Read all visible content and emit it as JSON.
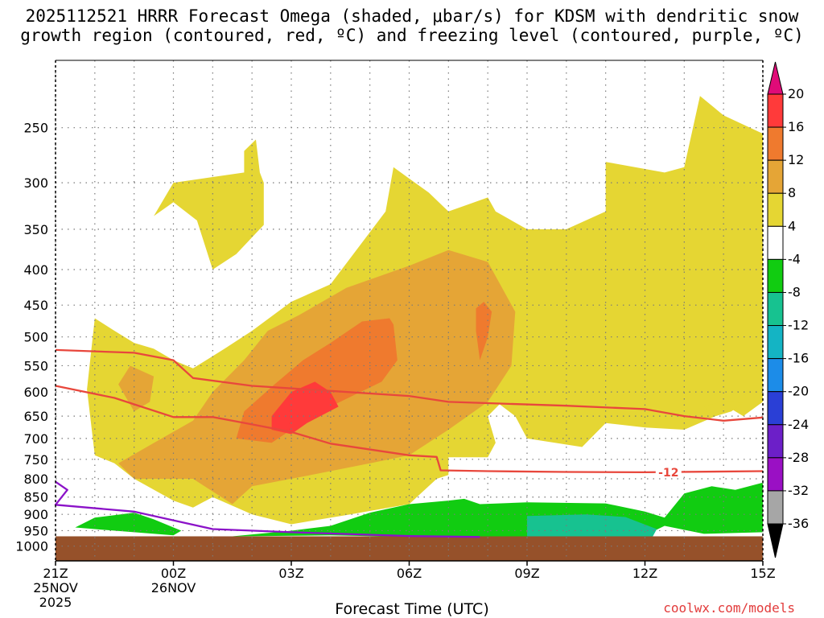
{
  "title_line1": "2025112521 HRRR Forecast Omega (shaded, μbar/s) for KDSM with dendritic snow",
  "title_line2": "growth region (contoured, red, ºC) and freezing level (contoured, purple, ºC)",
  "credit": "coolwx.com/models",
  "chart_data": {
    "type": "heatmap",
    "title": "2025112521 HRRR Forecast Omega (shaded, μbar/s) for KDSM with dendritic snow growth region (contoured, red, ºC) and freezing level (contoured, purple, ºC)",
    "xlabel": "Forecast Time (UTC)",
    "ylabel": "",
    "x_range_hours": [
      0,
      18
    ],
    "y_range_mb": [
      1050,
      200
    ],
    "y_scale": "log-pressure",
    "grid": true,
    "y_ticks": [
      250,
      300,
      350,
      400,
      450,
      500,
      550,
      600,
      650,
      700,
      750,
      800,
      850,
      900,
      950,
      1000
    ],
    "x_ticks": [
      {
        "hour": 0,
        "label": "21Z",
        "label2": "25NOV",
        "label3": "2025"
      },
      {
        "hour": 3,
        "label": "00Z",
        "label2": "26NOV",
        "label3": ""
      },
      {
        "hour": 6,
        "label": "03Z",
        "label2": "",
        "label3": ""
      },
      {
        "hour": 9,
        "label": "06Z",
        "label2": "",
        "label3": ""
      },
      {
        "hour": 12,
        "label": "09Z",
        "label2": "",
        "label3": ""
      },
      {
        "hour": 15,
        "label": "12Z",
        "label2": "",
        "label3": ""
      },
      {
        "hour": 18,
        "label": "15Z",
        "label2": "",
        "label3": ""
      }
    ],
    "colorbar": {
      "labels": [
        "20",
        "16",
        "12",
        "8",
        "4",
        "-4",
        "-8",
        "-12",
        "-16",
        "-20",
        "-24",
        "-28",
        "-32",
        "-36"
      ],
      "colors": [
        "#ff3a3a",
        "#ef7a2e",
        "#e5a536",
        "#e5d633",
        "#ffffff",
        "#11cc11",
        "#17c290",
        "#14b4c4",
        "#1c8ce8",
        "#2a3fd6",
        "#6c1fc8",
        "#9a10c4",
        "#a6a6a6"
      ],
      "top_color": "#e00b78",
      "bottom_color": "#000000"
    },
    "contour_labels": [
      {
        "text": "-12",
        "hour": 15.6,
        "p": 783
      }
    ],
    "lines": [
      {
        "name": "dgz_-12_upper",
        "color": "#e8473c",
        "points": [
          [
            0,
            522
          ],
          [
            2,
            527
          ],
          [
            3,
            540
          ],
          [
            3.5,
            573
          ],
          [
            5,
            588
          ],
          [
            7,
            598
          ],
          [
            9,
            608
          ],
          [
            10,
            620
          ],
          [
            13,
            628
          ],
          [
            15,
            635
          ],
          [
            16,
            650
          ],
          [
            17,
            660
          ],
          [
            18,
            653
          ]
        ]
      },
      {
        "name": "dgz_-12_lower",
        "color": "#e8473c",
        "points": [
          [
            0,
            588
          ],
          [
            1.5,
            612
          ],
          [
            3,
            652
          ],
          [
            4,
            652
          ],
          [
            5,
            668
          ],
          [
            6,
            685
          ],
          [
            7,
            712
          ],
          [
            9,
            740
          ],
          [
            9.7,
            744
          ],
          [
            9.8,
            778
          ],
          [
            11,
            780
          ],
          [
            13,
            782
          ],
          [
            15,
            783
          ],
          [
            18,
            780
          ]
        ]
      },
      {
        "name": "freezing_level",
        "color": "#8b12c8",
        "points": [
          [
            0,
            808
          ],
          [
            0.3,
            830
          ],
          [
            0,
            872
          ],
          [
            2,
            892
          ],
          [
            4,
            945
          ],
          [
            6,
            955
          ],
          [
            9,
            967
          ],
          [
            10.8,
            970
          ]
        ]
      }
    ],
    "regions": [
      {
        "value": "4",
        "color": "#e5d633",
        "points": [
          [
            0.8,
            595
          ],
          [
            1,
            470
          ],
          [
            1.5,
            490
          ],
          [
            2,
            510
          ],
          [
            2.5,
            520
          ],
          [
            3,
            540
          ],
          [
            3.5,
            555
          ],
          [
            4.3,
            520
          ],
          [
            5,
            490
          ],
          [
            6,
            445
          ],
          [
            7,
            420
          ],
          [
            8.4,
            330
          ],
          [
            8.6,
            285
          ],
          [
            9.5,
            310
          ],
          [
            10,
            330
          ],
          [
            11,
            315
          ],
          [
            11.2,
            330
          ],
          [
            12,
            350
          ],
          [
            13,
            350
          ],
          [
            14,
            330
          ],
          [
            14,
            280
          ],
          [
            15.5,
            290
          ],
          [
            16,
            285
          ],
          [
            16.4,
            225
          ],
          [
            17,
            240
          ],
          [
            18,
            255
          ],
          [
            18,
            620
          ],
          [
            17.5,
            650
          ],
          [
            17,
            625
          ],
          [
            16.8,
            650
          ],
          [
            16,
            680
          ],
          [
            15,
            675
          ],
          [
            14,
            665
          ],
          [
            13.4,
            720
          ],
          [
            12,
            700
          ],
          [
            11.7,
            650
          ],
          [
            11.3,
            625
          ],
          [
            11,
            650
          ],
          [
            11.2,
            710
          ],
          [
            11,
            745
          ],
          [
            10,
            745
          ],
          [
            10,
            790
          ],
          [
            9.7,
            800
          ],
          [
            9,
            870
          ],
          [
            7.5,
            900
          ],
          [
            6,
            930
          ],
          [
            5,
            900
          ],
          [
            4,
            850
          ],
          [
            3.5,
            880
          ],
          [
            3,
            860
          ],
          [
            2,
            800
          ],
          [
            1.5,
            760
          ],
          [
            1,
            740
          ]
        ]
      },
      {
        "value": "4",
        "color": "#e5d633",
        "points": [
          [
            2.5,
            335
          ],
          [
            3,
            300
          ],
          [
            4.8,
            290
          ],
          [
            4.8,
            270
          ],
          [
            5.1,
            260
          ],
          [
            5.2,
            290
          ],
          [
            5.3,
            300
          ],
          [
            5.3,
            345
          ],
          [
            4.6,
            380
          ],
          [
            4,
            400
          ],
          [
            3.6,
            340
          ],
          [
            3,
            320
          ]
        ]
      },
      {
        "value": "4",
        "color": "#e5d633",
        "points": [
          [
            16.5,
            630
          ],
          [
            17,
            618
          ],
          [
            17.5,
            622
          ],
          [
            17.2,
            640
          ],
          [
            16.8,
            650
          ]
        ]
      },
      {
        "value": "8",
        "color": "#e5a536",
        "points": [
          [
            1.6,
            760
          ],
          [
            2.7,
            700
          ],
          [
            3.5,
            660
          ],
          [
            4,
            600
          ],
          [
            4.8,
            540
          ],
          [
            5.4,
            490
          ],
          [
            6.2,
            465
          ],
          [
            7.4,
            425
          ],
          [
            9,
            395
          ],
          [
            10,
            375
          ],
          [
            11,
            390
          ],
          [
            11.7,
            460
          ],
          [
            11.6,
            550
          ],
          [
            11,
            620
          ],
          [
            10,
            680
          ],
          [
            9,
            740
          ],
          [
            8,
            760
          ],
          [
            6.5,
            790
          ],
          [
            5,
            820
          ],
          [
            4.5,
            870
          ],
          [
            3.5,
            800
          ],
          [
            2,
            800
          ]
        ]
      },
      {
        "value": "8",
        "color": "#e5a536",
        "points": [
          [
            1.6,
            585
          ],
          [
            1.9,
            550
          ],
          [
            2.5,
            570
          ],
          [
            2.4,
            620
          ],
          [
            2,
            640
          ]
        ]
      },
      {
        "value": "12",
        "color": "#ef7a2e",
        "points": [
          [
            4.6,
            700
          ],
          [
            4.8,
            640
          ],
          [
            5.5,
            590
          ],
          [
            6.3,
            540
          ],
          [
            7,
            510
          ],
          [
            7.8,
            475
          ],
          [
            8.5,
            470
          ],
          [
            8.6,
            480
          ],
          [
            8.7,
            540
          ],
          [
            8.3,
            580
          ],
          [
            7.5,
            610
          ],
          [
            6.5,
            650
          ],
          [
            6,
            680
          ],
          [
            5.5,
            710
          ]
        ]
      },
      {
        "value": "12",
        "color": "#ef7a2e",
        "points": [
          [
            10.7,
            455
          ],
          [
            10.9,
            445
          ],
          [
            11.1,
            460
          ],
          [
            11,
            500
          ],
          [
            10.8,
            540
          ],
          [
            10.7,
            490
          ]
        ]
      },
      {
        "value": "16",
        "color": "#ff3a3a",
        "points": [
          [
            5.5,
            650
          ],
          [
            6,
            600
          ],
          [
            6.6,
            580
          ],
          [
            7,
            600
          ],
          [
            7.2,
            630
          ],
          [
            6.4,
            665
          ],
          [
            6,
            690
          ],
          [
            5.5,
            680
          ]
        ]
      },
      {
        "value": "-4",
        "color": "#11cc11",
        "points": [
          [
            0.5,
            940
          ],
          [
            1,
            910
          ],
          [
            2,
            895
          ],
          [
            2.5,
            915
          ],
          [
            3.2,
            950
          ],
          [
            3,
            965
          ],
          [
            2,
            955
          ],
          [
            1,
            945
          ]
        ]
      },
      {
        "value": "-4",
        "color": "#11cc11",
        "points": [
          [
            4.5,
            968
          ],
          [
            6,
            950
          ],
          [
            7,
            935
          ],
          [
            8,
            895
          ],
          [
            9,
            870
          ],
          [
            10,
            860
          ],
          [
            10.4,
            855
          ],
          [
            10.8,
            870
          ],
          [
            12,
            865
          ],
          [
            14,
            868
          ],
          [
            15,
            892
          ],
          [
            15.5,
            910
          ],
          [
            16,
            840
          ],
          [
            16.7,
            820
          ],
          [
            17.3,
            830
          ],
          [
            18,
            810
          ],
          [
            18,
            955
          ],
          [
            16.5,
            960
          ],
          [
            15.5,
            935
          ],
          [
            15,
            965
          ],
          [
            13,
            970
          ],
          [
            9,
            970
          ],
          [
            7,
            965
          ]
        ]
      },
      {
        "value": "-8",
        "color": "#17c290",
        "points": [
          [
            12,
            905
          ],
          [
            13.5,
            900
          ],
          [
            14.5,
            908
          ],
          [
            15.3,
            945
          ],
          [
            15.2,
            968
          ],
          [
            12,
            968
          ]
        ]
      }
    ],
    "ground": {
      "from_p": 968,
      "to_p": 1050,
      "color": "#96512a"
    }
  }
}
